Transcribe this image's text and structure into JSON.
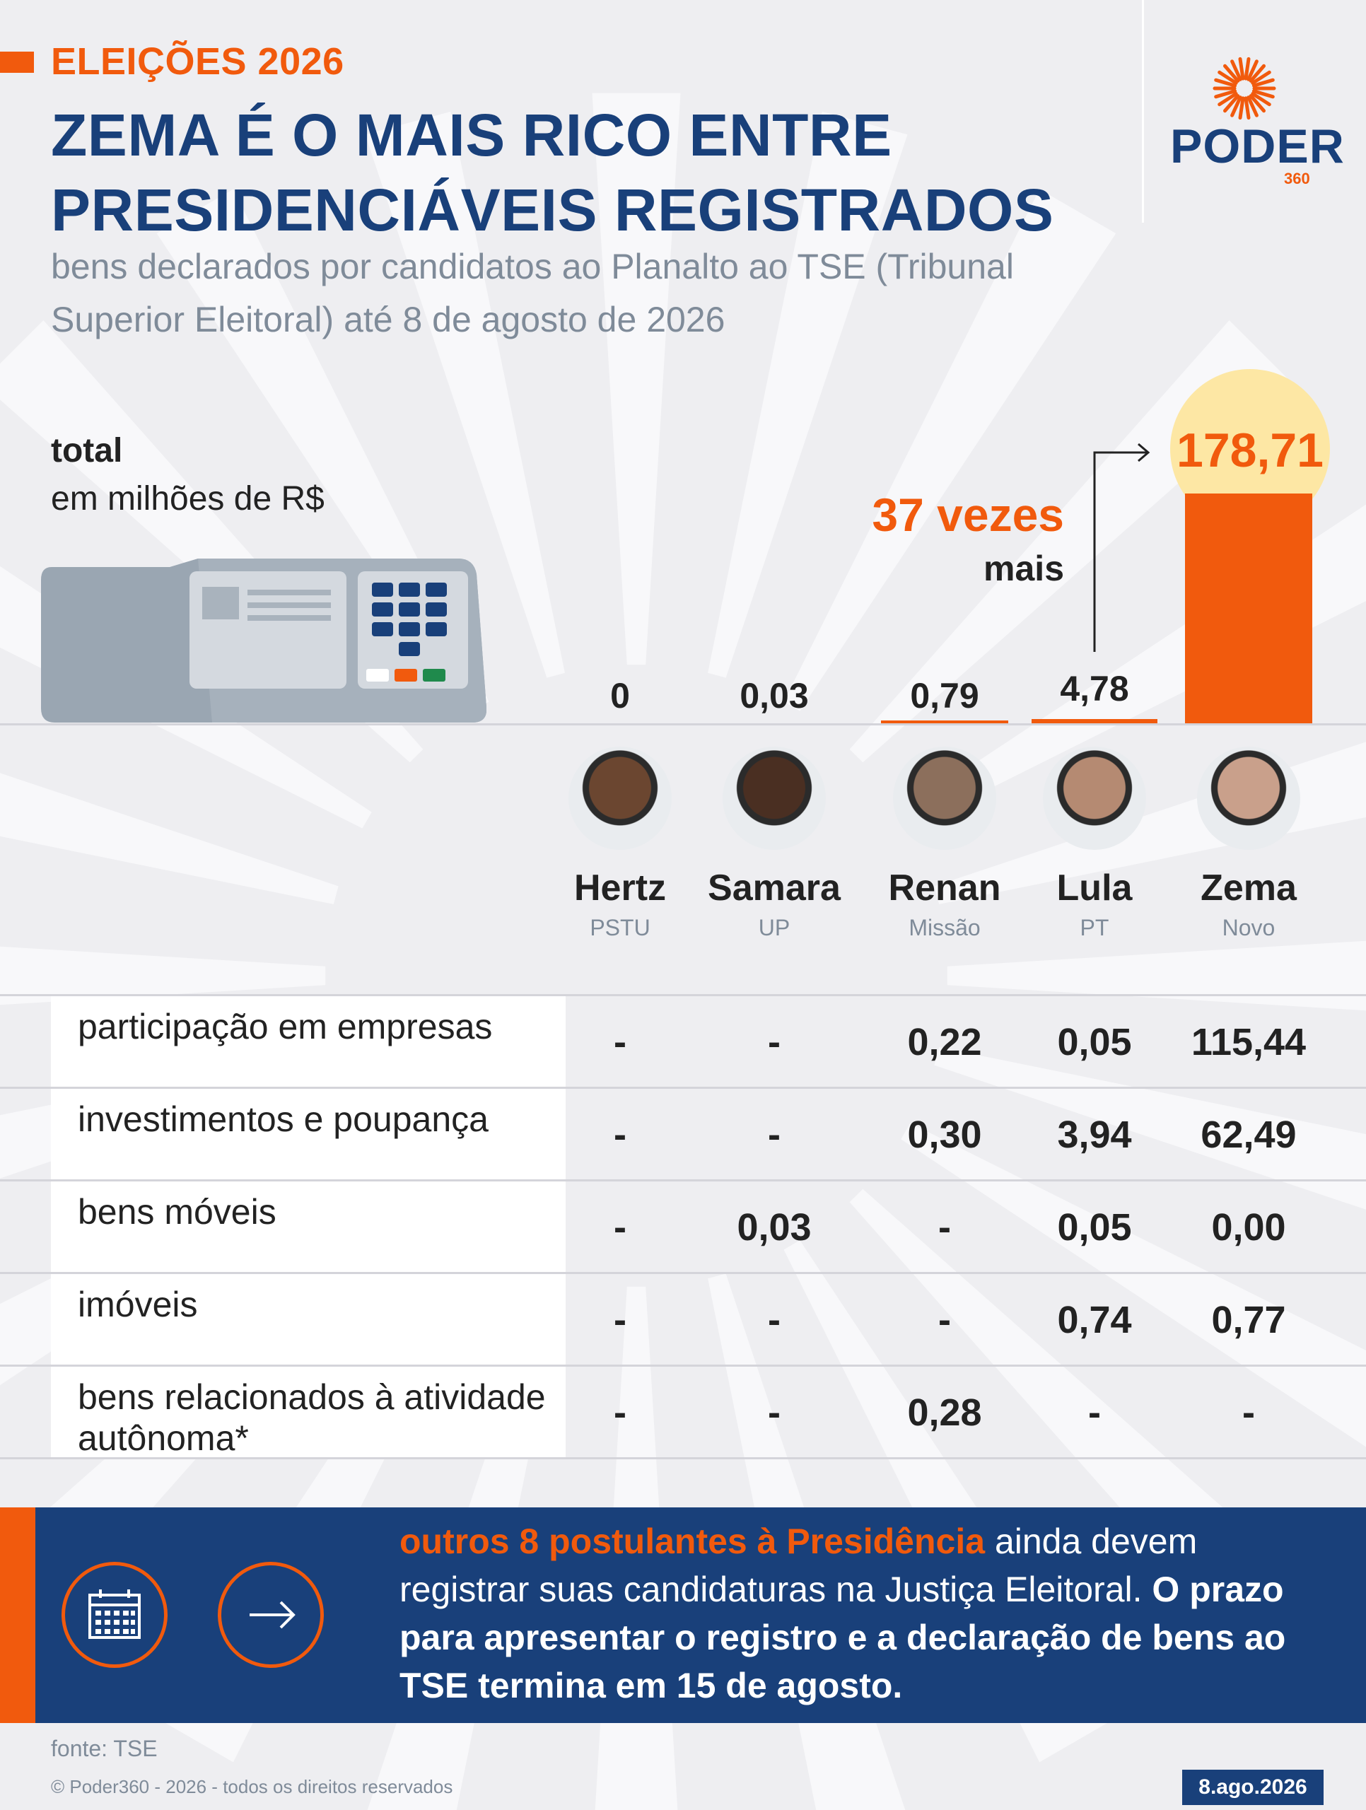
{
  "header": {
    "kicker": "ELEIÇÕES 2026",
    "headline": "ZEMA É O MAIS RICO ENTRE PRESIDENCIÁVEIS REGISTRADOS",
    "subtitle": "bens declarados por candidatos ao Planalto ao TSE (Tribunal Superior Eleitoral) até 8 de agosto de 2026",
    "logo_word": "PODER",
    "logo_number": "360"
  },
  "chart_data": {
    "type": "bar",
    "unit_label_1": "total",
    "unit_label_2": "em milhões de R$",
    "categories": [
      "Hertz",
      "Samara",
      "Renan",
      "Lula",
      "Zema"
    ],
    "values": [
      0,
      0.03,
      0.79,
      4.78,
      178.71
    ],
    "value_labels": [
      "0",
      "0,03",
      "0,79",
      "4,78",
      "178,71"
    ],
    "bar_color": "#f15a0d",
    "highlight_color": "#fde7a4",
    "annotation": {
      "line1": "37 vezes",
      "line2": "mais"
    }
  },
  "candidates": [
    {
      "name": "Hertz",
      "party": "PSTU"
    },
    {
      "name": "Samara",
      "party": "UP"
    },
    {
      "name": "Renan",
      "party": "Missão"
    },
    {
      "name": "Lula",
      "party": "PT"
    },
    {
      "name": "Zema",
      "party": "Novo"
    }
  ],
  "table": {
    "rows": [
      {
        "label": "participação em empresas",
        "values": [
          "-",
          "-",
          "0,22",
          "0,05",
          "115,44"
        ]
      },
      {
        "label": "investimentos e poupança",
        "values": [
          "-",
          "-",
          "0,30",
          "3,94",
          "62,49"
        ]
      },
      {
        "label": "bens móveis",
        "values": [
          "-",
          "0,03",
          "-",
          "0,05",
          "0,00"
        ]
      },
      {
        "label": "imóveis",
        "values": [
          "-",
          "-",
          "-",
          "0,74",
          "0,77"
        ]
      },
      {
        "label": "bens relacionados à atividade autônoma*",
        "values": [
          "-",
          "-",
          "0,28",
          "-",
          "-"
        ]
      }
    ]
  },
  "note": {
    "highlight": "outros 8 postulantes à Presidência",
    "text_regular": "ainda devem registrar suas candidaturas na Justiça Eleitoral.",
    "text_bold": "O prazo para apresentar o registro e a declaração de bens ao TSE termina em 15 de agosto."
  },
  "footer": {
    "source": "fonte: TSE",
    "copyright": "© Poder360 - 2026 - todos os direitos reservados",
    "date": "8.ago.2026"
  },
  "colors": {
    "navy": "#19407a",
    "orange": "#f15a0d",
    "gray_text": "#7f8b99",
    "background": "#eeeef1"
  },
  "icons": [
    "ballot-box-icon",
    "calendar-icon",
    "arrow-right-icon",
    "poder360-sun-icon"
  ]
}
